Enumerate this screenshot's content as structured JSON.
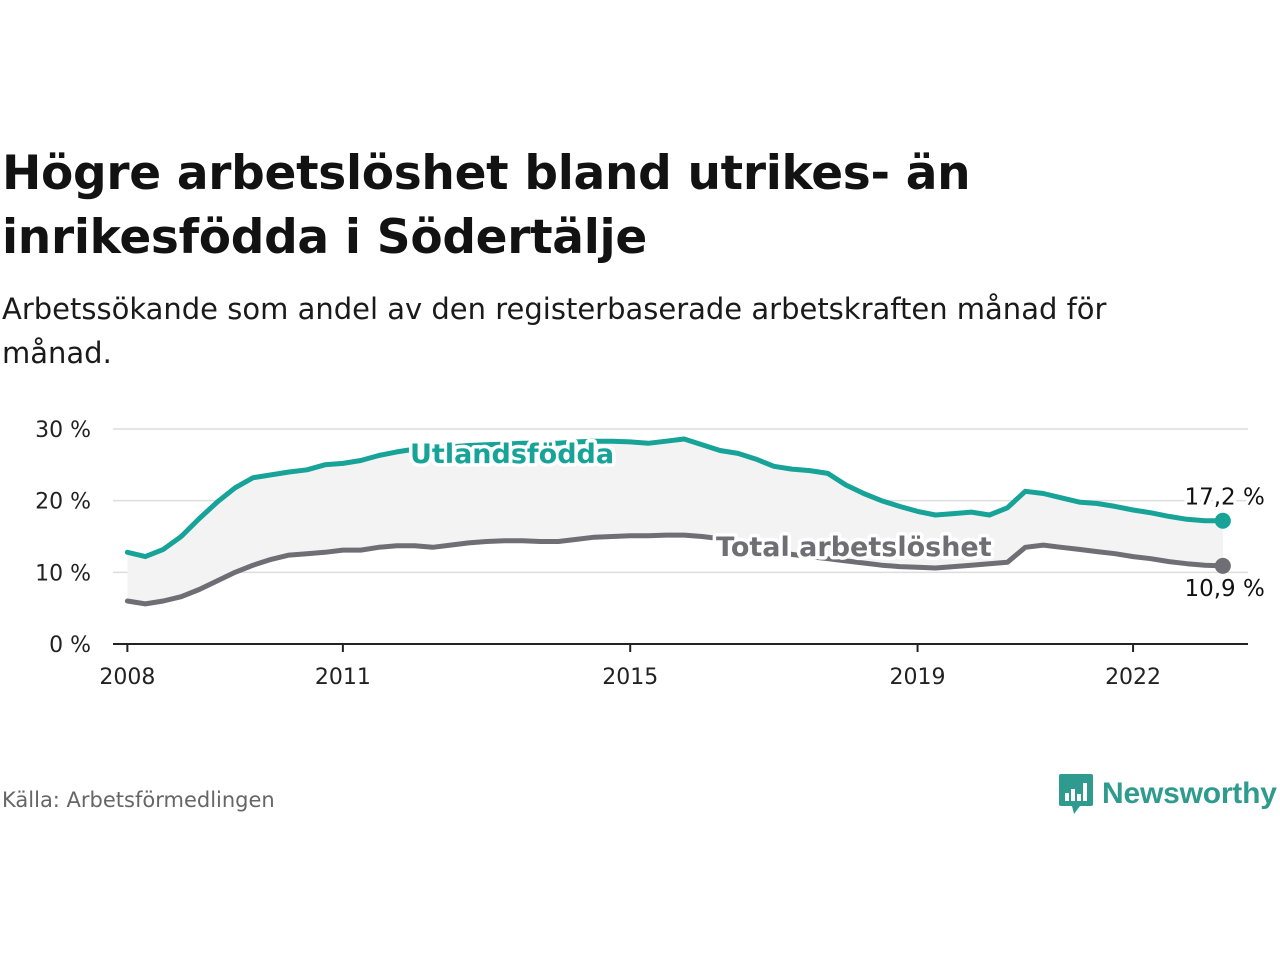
{
  "title": "Högre arbetslöshet bland utrikes- än inrikesfödda i Södertälje",
  "subtitle": "Arbetssökande som andel av den registerbaserade arbetskraften månad för månad.",
  "source": "Källa: Arbetsförmedlingen",
  "brand": {
    "name": "Newsworthy",
    "icon": "newsworthy-bar-chart-icon"
  },
  "colors": {
    "foreign": "#17a398",
    "total": "#6f6e74",
    "band": "#f3f3f3",
    "grid": "#dddddd",
    "axis": "#222222",
    "brand": "#2e9b8e"
  },
  "chart_data": {
    "type": "line",
    "title": "Högre arbetslöshet bland utrikes- än inrikesfödda i Södertälje",
    "xlabel": "",
    "ylabel": "",
    "xlim": [
      2007.8,
      2023.6
    ],
    "ylim": [
      0,
      30
    ],
    "y_ticks": [
      0,
      10,
      20,
      30
    ],
    "y_tick_labels": [
      "0 %",
      "10 %",
      "20 %",
      "30 %"
    ],
    "x_ticks": [
      2008,
      2011,
      2015,
      2019,
      2022
    ],
    "x_tick_labels": [
      "2008",
      "2011",
      "2015",
      "2019",
      "2022"
    ],
    "grid": true,
    "series": [
      {
        "name": "Utlandsfödda",
        "label": "Utlandsfödda",
        "end_label": "17,2 %",
        "x": [
          2008.0,
          2008.25,
          2008.5,
          2008.75,
          2009.0,
          2009.25,
          2009.5,
          2009.75,
          2010.0,
          2010.25,
          2010.5,
          2010.75,
          2011.0,
          2011.25,
          2011.5,
          2011.75,
          2012.0,
          2012.25,
          2012.5,
          2012.75,
          2013.0,
          2013.25,
          2013.5,
          2013.75,
          2014.0,
          2014.25,
          2014.5,
          2014.75,
          2015.0,
          2015.25,
          2015.5,
          2015.75,
          2016.0,
          2016.25,
          2016.5,
          2016.75,
          2017.0,
          2017.25,
          2017.5,
          2017.75,
          2018.0,
          2018.25,
          2018.5,
          2018.75,
          2019.0,
          2019.25,
          2019.5,
          2019.75,
          2020.0,
          2020.25,
          2020.5,
          2020.75,
          2021.0,
          2021.25,
          2021.5,
          2021.75,
          2022.0,
          2022.25,
          2022.5,
          2022.75,
          2023.0,
          2023.25
        ],
        "values": [
          12.8,
          12.2,
          13.2,
          15.0,
          17.5,
          19.8,
          21.8,
          23.2,
          23.6,
          24.0,
          24.3,
          25.0,
          25.2,
          25.6,
          26.3,
          26.8,
          27.2,
          27.4,
          27.5,
          27.7,
          27.8,
          27.9,
          28.0,
          28.0,
          28.0,
          28.2,
          28.3,
          28.3,
          28.2,
          28.0,
          28.3,
          28.6,
          27.8,
          27.0,
          26.6,
          25.8,
          24.8,
          24.4,
          24.2,
          23.8,
          22.2,
          21.0,
          20.0,
          19.2,
          18.5,
          18.0,
          18.2,
          18.4,
          18.0,
          19.0,
          21.3,
          21.0,
          20.4,
          19.8,
          19.6,
          19.2,
          18.7,
          18.3,
          17.8,
          17.4,
          17.2,
          17.2
        ]
      },
      {
        "name": "Total arbetslöshet",
        "label": "Total arbetslöshet",
        "end_label": "10,9 %",
        "x": [
          2008.0,
          2008.25,
          2008.5,
          2008.75,
          2009.0,
          2009.25,
          2009.5,
          2009.75,
          2010.0,
          2010.25,
          2010.5,
          2010.75,
          2011.0,
          2011.25,
          2011.5,
          2011.75,
          2012.0,
          2012.25,
          2012.5,
          2012.75,
          2013.0,
          2013.25,
          2013.5,
          2013.75,
          2014.0,
          2014.25,
          2014.5,
          2014.75,
          2015.0,
          2015.25,
          2015.5,
          2015.75,
          2016.0,
          2016.25,
          2016.5,
          2016.75,
          2017.0,
          2017.25,
          2017.5,
          2017.75,
          2018.0,
          2018.25,
          2018.5,
          2018.75,
          2019.0,
          2019.25,
          2019.5,
          2019.75,
          2020.0,
          2020.25,
          2020.5,
          2020.75,
          2021.0,
          2021.25,
          2021.5,
          2021.75,
          2022.0,
          2022.25,
          2022.5,
          2022.75,
          2023.0,
          2023.25
        ],
        "values": [
          6.0,
          5.6,
          6.0,
          6.6,
          7.6,
          8.8,
          10.0,
          11.0,
          11.8,
          12.4,
          12.6,
          12.8,
          13.1,
          13.1,
          13.5,
          13.7,
          13.7,
          13.5,
          13.8,
          14.1,
          14.3,
          14.4,
          14.4,
          14.3,
          14.3,
          14.6,
          14.9,
          15.0,
          15.1,
          15.1,
          15.2,
          15.2,
          15.0,
          14.7,
          14.2,
          13.6,
          12.9,
          12.5,
          12.2,
          11.9,
          11.6,
          11.3,
          11.0,
          10.8,
          10.7,
          10.6,
          10.8,
          11.0,
          11.2,
          11.4,
          13.5,
          13.8,
          13.5,
          13.2,
          12.9,
          12.6,
          12.2,
          11.9,
          11.5,
          11.2,
          11.0,
          10.9
        ]
      }
    ]
  }
}
